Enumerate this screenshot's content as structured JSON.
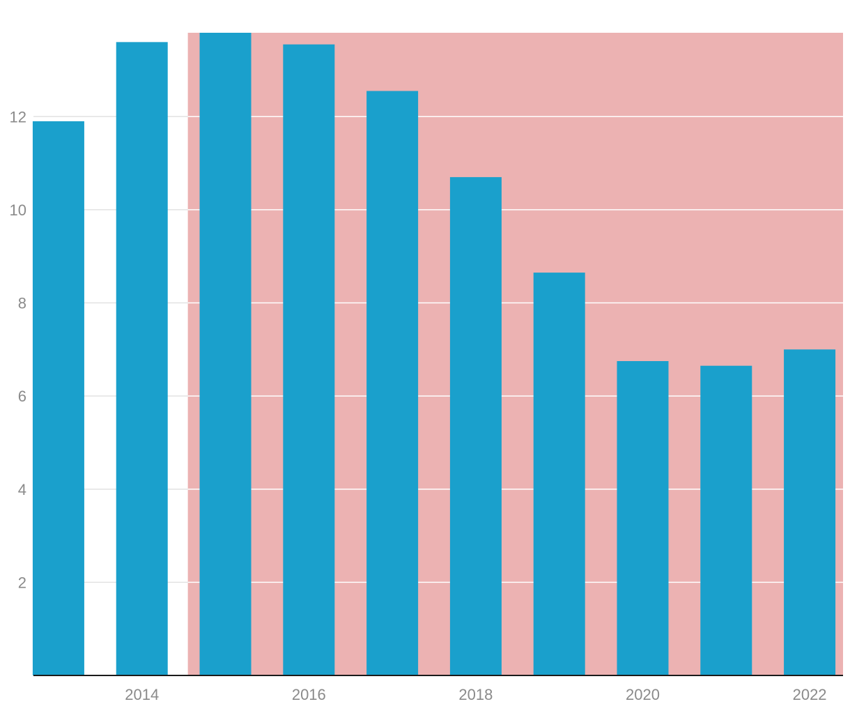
{
  "chart_data": {
    "type": "bar",
    "title": "",
    "xlabel": "",
    "ylabel": "",
    "x": [
      2013,
      2014,
      2015,
      2016,
      2017,
      2018,
      2019,
      2020,
      2021,
      2022
    ],
    "values": [
      11.9,
      13.6,
      13.8,
      13.55,
      12.55,
      10.7,
      8.65,
      6.75,
      6.65,
      7.0
    ],
    "ylim": [
      0,
      13.8
    ],
    "xlim": [
      2012.7,
      2022.4
    ],
    "y_ticks": [
      2,
      4,
      6,
      8,
      10,
      12
    ],
    "y_tick_labels": [
      "2",
      "4",
      "6",
      "8",
      "10",
      "12"
    ],
    "x_ticks": [
      2014,
      2016,
      2018,
      2020,
      2022
    ],
    "x_tick_labels": [
      "2014",
      "2016",
      "2018",
      "2020",
      "2022"
    ],
    "highlight_region": {
      "x_start": 2014.55,
      "x_end": 2022.4
    },
    "grid": true,
    "colors": {
      "bar": "#1aa0cc",
      "highlight": "#ecb2b2",
      "grid_on_white": "#e2e2e2",
      "grid_on_highlight": "#ffffff",
      "axis": "#1a1a1a",
      "tick_text": "#8a8a8a"
    }
  }
}
